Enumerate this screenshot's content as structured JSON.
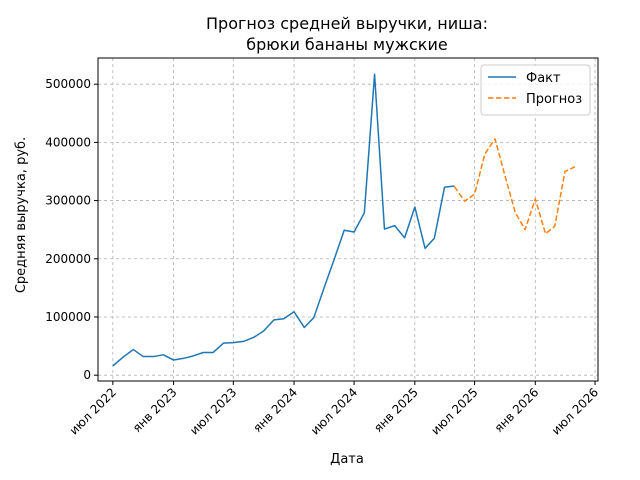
{
  "chart_data": {
    "type": "line",
    "title_lines": [
      "Прогноз средней выручки, ниша:",
      "брюки бананы мужские"
    ],
    "xlabel": "Дата",
    "ylabel": "Средняя выручка, руб.",
    "x_type": "date",
    "xlim": [
      "2022-05-17",
      "2026-07-10"
    ],
    "ylim": [
      -10000,
      545000
    ],
    "x_ticks": [
      {
        "date": "2022-07-01",
        "label": "июл 2022"
      },
      {
        "date": "2023-01-01",
        "label": "янв 2023"
      },
      {
        "date": "2023-07-01",
        "label": "июл 2023"
      },
      {
        "date": "2024-01-01",
        "label": "янв 2024"
      },
      {
        "date": "2024-07-01",
        "label": "июл 2024"
      },
      {
        "date": "2025-01-01",
        "label": "янв 2025"
      },
      {
        "date": "2025-07-01",
        "label": "июл 2025"
      },
      {
        "date": "2026-01-01",
        "label": "янв 2026"
      },
      {
        "date": "2026-07-01",
        "label": "июл 2026"
      }
    ],
    "y_ticks": [
      0,
      100000,
      200000,
      300000,
      400000,
      500000
    ],
    "grid": true,
    "legend_position": "top-right",
    "series": [
      {
        "name": "Факт",
        "color": "#1f77b4",
        "style": "solid",
        "points": [
          [
            "2022-07-01",
            16000
          ],
          [
            "2022-08-01",
            31000
          ],
          [
            "2022-09-01",
            44000
          ],
          [
            "2022-10-01",
            32000
          ],
          [
            "2022-11-01",
            32000
          ],
          [
            "2022-12-01",
            35000
          ],
          [
            "2023-01-01",
            26000
          ],
          [
            "2023-02-01",
            29000
          ],
          [
            "2023-03-01",
            33000
          ],
          [
            "2023-04-01",
            39000
          ],
          [
            "2023-05-01",
            39000
          ],
          [
            "2023-06-01",
            55000
          ],
          [
            "2023-07-01",
            56000
          ],
          [
            "2023-08-01",
            58000
          ],
          [
            "2023-09-01",
            65000
          ],
          [
            "2023-10-01",
            76000
          ],
          [
            "2023-11-01",
            95000
          ],
          [
            "2023-12-01",
            97000
          ],
          [
            "2024-01-01",
            109000
          ],
          [
            "2024-02-01",
            82000
          ],
          [
            "2024-03-01",
            99000
          ],
          [
            "2024-04-01",
            150000
          ],
          [
            "2024-05-01",
            198000
          ],
          [
            "2024-06-01",
            249000
          ],
          [
            "2024-07-01",
            246000
          ],
          [
            "2024-08-01",
            279000
          ],
          [
            "2024-09-01",
            517000
          ],
          [
            "2024-10-01",
            251000
          ],
          [
            "2024-11-01",
            257000
          ],
          [
            "2024-12-01",
            236000
          ],
          [
            "2025-01-01",
            289000
          ],
          [
            "2025-02-01",
            218000
          ],
          [
            "2025-03-01",
            235000
          ],
          [
            "2025-04-01",
            323000
          ],
          [
            "2025-05-01",
            325000
          ]
        ]
      },
      {
        "name": "Прогноз",
        "color": "#ff7f0e",
        "style": "dashed",
        "points": [
          [
            "2025-05-01",
            324000
          ],
          [
            "2025-06-01",
            299000
          ],
          [
            "2025-07-01",
            311000
          ],
          [
            "2025-08-01",
            380000
          ],
          [
            "2025-09-01",
            406000
          ],
          [
            "2025-10-01",
            343000
          ],
          [
            "2025-11-01",
            280000
          ],
          [
            "2025-12-01",
            250000
          ],
          [
            "2026-01-01",
            303000
          ],
          [
            "2026-02-01",
            243000
          ],
          [
            "2026-03-01",
            256000
          ],
          [
            "2026-04-01",
            350000
          ],
          [
            "2026-05-01",
            358000
          ]
        ]
      }
    ]
  }
}
